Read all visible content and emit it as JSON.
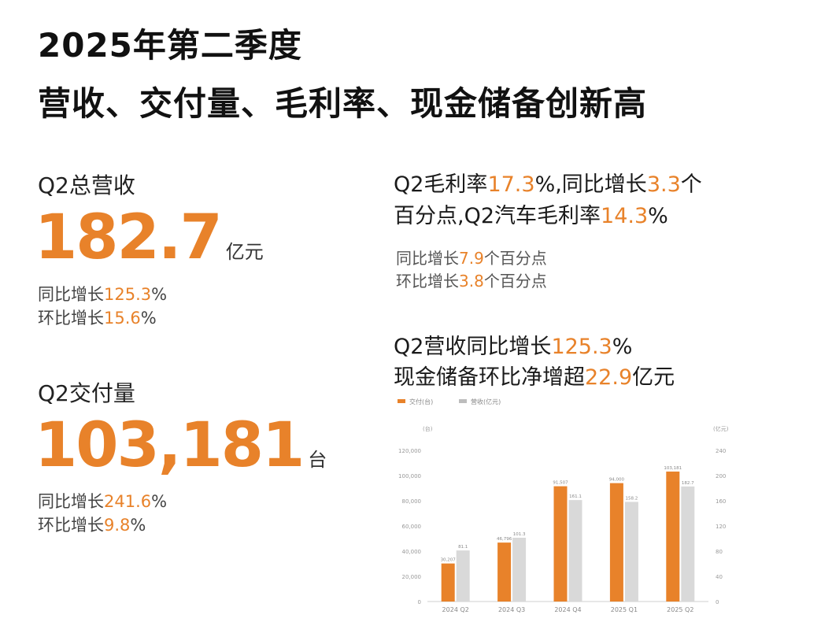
{
  "header": {
    "line1": "2025年第二季度",
    "line2": "营收、交付量、毛利率、现金储备创新高"
  },
  "revenue": {
    "label": "Q2总营收",
    "value": "182.7",
    "unit": "亿元",
    "yoy_prefix": "同比增长",
    "yoy_value": "125.3",
    "yoy_suffix": "%",
    "qoq_prefix": "环比增长",
    "qoq_value": "15.6",
    "qoq_suffix": "%"
  },
  "deliveries": {
    "label": "Q2交付量",
    "value": "103,181",
    "unit": "台",
    "yoy_prefix": "同比增长",
    "yoy_value": "241.6",
    "yoy_suffix": "%",
    "qoq_prefix": "环比增长",
    "qoq_value": "9.8",
    "qoq_suffix": "%"
  },
  "margin": {
    "l1a": "Q2毛利率",
    "l1b": "17.3",
    "l1c": "%,同比增长",
    "l1d": "3.3",
    "l1e": "个",
    "l2a": "百分点,Q2汽车毛利率",
    "l2b": "14.3",
    "l2c": "%",
    "s1a": "同比增长",
    "s1b": "7.9",
    "s1c": "个百分点",
    "s2a": "环比增长",
    "s2b": "3.8",
    "s2c": "个百分点"
  },
  "growth": {
    "l1a": "Q2营收同比增长",
    "l1b": "125.3",
    "l1c": "%",
    "l2a": "现金储备环比净增超",
    "l2b": "22.9",
    "l2c": "亿元"
  },
  "colors": {
    "accent": "#e8822a",
    "gray_bar": "#d9d9d9",
    "text": "#1a1a1a"
  },
  "chart_data": {
    "type": "bar",
    "categories": [
      "2024 Q2",
      "2024 Q3",
      "2024 Q4",
      "2025 Q1",
      "2025 Q2"
    ],
    "series": [
      {
        "name": "交付(台)",
        "axis": "left",
        "color": "#e8822a",
        "values": [
          30207,
          46796,
          91507,
          94000,
          103181
        ]
      },
      {
        "name": "营收(亿元)",
        "axis": "right",
        "color": "#d9d9d9",
        "values": [
          81.1,
          101.3,
          161.1,
          158.2,
          182.7
        ]
      }
    ],
    "data_labels": [
      [
        "30,207",
        "46,796",
        "91,507",
        "94,000",
        "103,181"
      ],
      [
        "81.1",
        "101.3",
        "161.1",
        "158.2",
        "182.7"
      ]
    ],
    "y_left": {
      "label": "(台)",
      "ylim": [
        0,
        120000
      ],
      "ticks": [
        "0",
        "20,000",
        "40,000",
        "60,000",
        "80,000",
        "100,000",
        "120,000"
      ]
    },
    "y_right": {
      "label": "(亿元)",
      "ylim": [
        0,
        240
      ],
      "ticks": [
        "0",
        "40",
        "80",
        "120",
        "160",
        "200",
        "240"
      ]
    },
    "legend_position": "top-left",
    "grid": false
  }
}
